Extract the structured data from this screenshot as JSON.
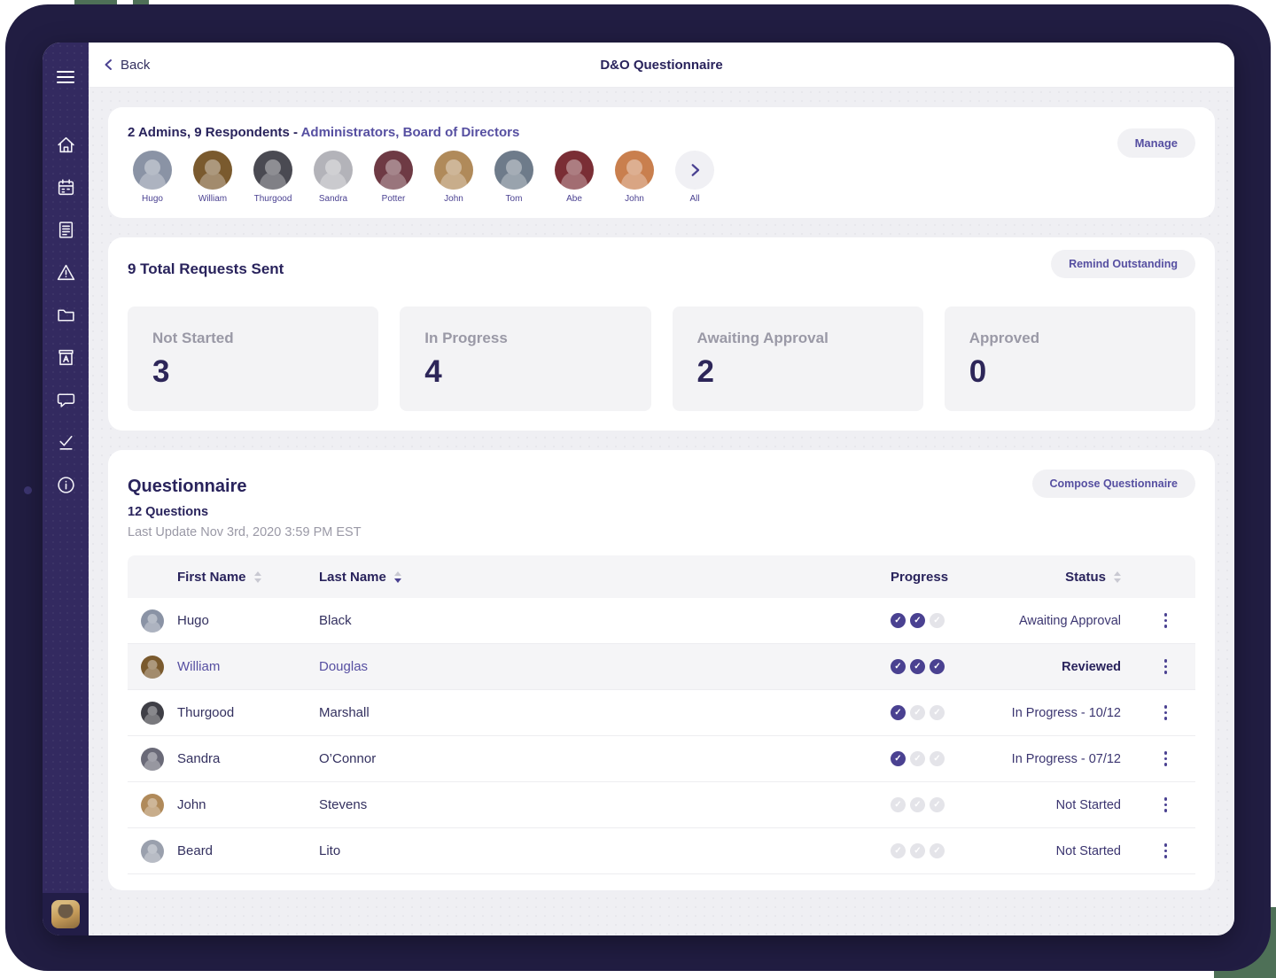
{
  "topbar": {
    "back_label": "Back",
    "title": "D&O Questionnaire"
  },
  "respondents_card": {
    "summary_prefix": "2 Admins, 9 Respondents - ",
    "summary_link": "Administrators, Board of Directors",
    "manage_label": "Manage",
    "all_label": "All",
    "avatars": [
      {
        "name": "Hugo",
        "color": "#8a93a5"
      },
      {
        "name": "William",
        "color": "#7a5a2e"
      },
      {
        "name": "Thurgood",
        "color": "#4a4a52"
      },
      {
        "name": "Sandra",
        "color": "#b3b3b9"
      },
      {
        "name": "Potter",
        "color": "#6e3a44"
      },
      {
        "name": "John",
        "color": "#b08a5a"
      },
      {
        "name": "Tom",
        "color": "#6e7b8a"
      },
      {
        "name": "Abe",
        "color": "#7a2e35"
      },
      {
        "name": "John",
        "color": "#c97f4e"
      }
    ]
  },
  "requests_card": {
    "title": "9 Total Requests Sent",
    "remind_label": "Remind Outstanding",
    "stats": [
      {
        "label": "Not Started",
        "value": "3"
      },
      {
        "label": "In Progress",
        "value": "4"
      },
      {
        "label": "Awaiting Approval",
        "value": "2"
      },
      {
        "label": "Approved",
        "value": "0"
      }
    ]
  },
  "questionnaire_card": {
    "title": "Questionnaire",
    "subtitle": "12 Questions",
    "last_update": "Last Update Nov 3rd, 2020 3:59 PM EST",
    "compose_label": "Compose Questionnaire",
    "table": {
      "columns": [
        {
          "label": "First Name",
          "sort": "none"
        },
        {
          "label": "Last Name",
          "sort": "desc"
        },
        {
          "label": "Progress",
          "sort": null
        },
        {
          "label": "Status",
          "sort": "none"
        }
      ],
      "progress_steps": 3,
      "rows": [
        {
          "first": "Hugo",
          "last": "Black",
          "avatar_color": "#8a93a5",
          "checks": 2,
          "status": "Awaiting Approval",
          "highlight": false,
          "status_bold": false
        },
        {
          "first": "William",
          "last": "Douglas",
          "avatar_color": "#7a5a2e",
          "checks": 3,
          "status": "Reviewed",
          "highlight": true,
          "status_bold": true
        },
        {
          "first": "Thurgood",
          "last": "Marshall",
          "avatar_color": "#3f3f46",
          "checks": 1,
          "status": "In Progress - 10/12",
          "highlight": false,
          "status_bold": false
        },
        {
          "first": "Sandra",
          "last": "O’Connor",
          "avatar_color": "#6a6a78",
          "checks": 1,
          "status": "In Progress - 07/12",
          "highlight": false,
          "status_bold": false
        },
        {
          "first": "John",
          "last": "Stevens",
          "avatar_color": "#b08a5a",
          "checks": 0,
          "status": "Not Started",
          "highlight": false,
          "status_bold": false
        },
        {
          "first": "Beard",
          "last": "Lito",
          "avatar_color": "#9aa0ad",
          "checks": 0,
          "status": "Not Started",
          "highlight": false,
          "status_bold": false
        }
      ]
    }
  },
  "sidebar": {
    "icons": [
      "menu",
      "home",
      "calendar",
      "document",
      "warning",
      "folder",
      "archive",
      "comment",
      "tasks-check",
      "info"
    ]
  },
  "colors": {
    "frame": "#211d42",
    "sidebar": "#332a60",
    "accent_purple": "#564fa1",
    "check_purple": "#4a4191",
    "heading_navy": "#29235c",
    "muted_gray": "#9a99a6",
    "content_bg": "#efeff3",
    "green_accent": "#4e7057"
  }
}
